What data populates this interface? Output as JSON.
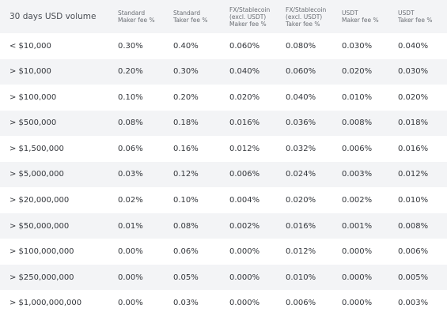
{
  "table": {
    "header": [
      [
        "30 days USD volume"
      ],
      [
        "Standard",
        "Maker fee %"
      ],
      [
        "Standard",
        "Taker fee %"
      ],
      [
        "FX/Stablecoin",
        "(excl. USDT)",
        "Maker fee %"
      ],
      [
        "FX/Stablecoin",
        "(excl. USDT)",
        "Taker fee %"
      ],
      [
        "USDT",
        "Maker fee %"
      ],
      [
        "USDT",
        "Taker fee %"
      ]
    ],
    "rows": [
      [
        "< $10,000",
        "0.30%",
        "0.40%",
        "0.060%",
        "0.080%",
        "0.030%",
        "0.040%"
      ],
      [
        "> $10,000",
        "0.20%",
        "0.30%",
        "0.040%",
        "0.060%",
        "0.020%",
        "0.030%"
      ],
      [
        "> $100,000",
        "0.10%",
        "0.20%",
        "0.020%",
        "0.040%",
        "0.010%",
        "0.020%"
      ],
      [
        "> $500,000",
        "0.08%",
        "0.18%",
        "0.016%",
        "0.036%",
        "0.008%",
        "0.018%"
      ],
      [
        "> $1,500,000",
        "0.06%",
        "0.16%",
        "0.012%",
        "0.032%",
        "0.006%",
        "0.016%"
      ],
      [
        "> $5,000,000",
        "0.03%",
        "0.12%",
        "0.006%",
        "0.024%",
        "0.003%",
        "0.012%"
      ],
      [
        "> $20,000,000",
        "0.02%",
        "0.10%",
        "0.004%",
        "0.020%",
        "0.002%",
        "0.010%"
      ],
      [
        "> $50,000,000",
        "0.01%",
        "0.08%",
        "0.002%",
        "0.016%",
        "0.001%",
        "0.008%"
      ],
      [
        "> $100,000,000",
        "0.00%",
        "0.06%",
        "0.000%",
        "0.012%",
        "0.000%",
        "0.006%"
      ],
      [
        "> $250,000,000",
        "0.00%",
        "0.05%",
        "0.000%",
        "0.010%",
        "0.000%",
        "0.005%"
      ],
      [
        "> $1,000,000,000",
        "0.00%",
        "0.03%",
        "0.000%",
        "0.006%",
        "0.000%",
        "0.003%"
      ]
    ]
  }
}
